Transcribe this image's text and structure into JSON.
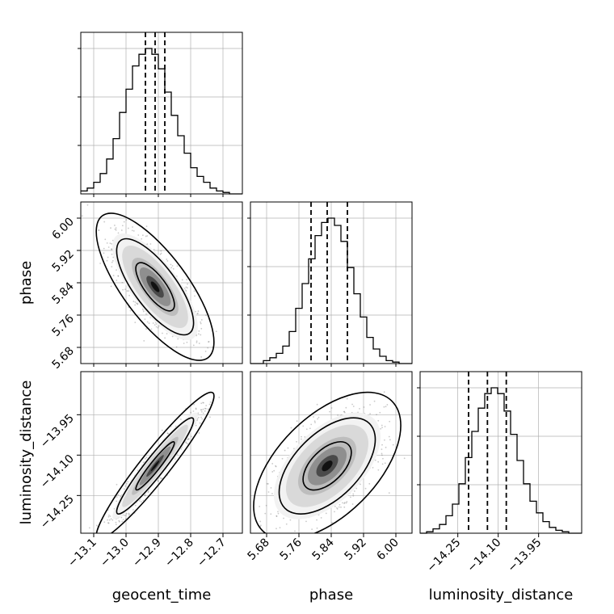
{
  "chart_data": {
    "type": "corner",
    "parameters": [
      "geocent_time",
      "phase",
      "luminosity_distance"
    ],
    "labels": {
      "geocent_time": "geocent_time",
      "phase": "phase",
      "luminosity_distance": "luminosity_distance"
    },
    "ranges": {
      "geocent_time": [
        -13.14,
        -12.64
      ],
      "phase": [
        5.64,
        6.04
      ],
      "luminosity_distance": [
        -14.39,
        -13.79
      ]
    },
    "ticks": {
      "geocent_time": {
        "values": [
          -13.1,
          -13.0,
          -12.9,
          -12.8,
          -12.7
        ],
        "labels": [
          "−13.1",
          "−13.0",
          "−12.9",
          "−12.8",
          "−12.7"
        ]
      },
      "phase": {
        "values": [
          5.68,
          5.76,
          5.84,
          5.92,
          6.0
        ],
        "labels": [
          "5.68",
          "5.76",
          "5.84",
          "5.92",
          "6.00"
        ]
      },
      "luminosity_distance": {
        "values": [
          -14.25,
          -14.1,
          -13.95
        ],
        "labels": [
          "−14.25",
          "−14.10",
          "−13.95"
        ]
      }
    },
    "quantiles": {
      "geocent_time": [
        -12.94,
        -12.91,
        -12.88
      ],
      "phase": [
        5.79,
        5.83,
        5.88
      ],
      "luminosity_distance": [
        -14.21,
        -14.14,
        -14.07
      ]
    },
    "histograms": {
      "geocent_time": {
        "bins": [
          -13.14,
          -13.12,
          -13.1,
          -13.08,
          -13.06,
          -13.04,
          -13.02,
          -13.0,
          -12.98,
          -12.96,
          -12.94,
          -12.92,
          -12.9,
          -12.88,
          -12.86,
          -12.84,
          -12.82,
          -12.8,
          -12.78,
          -12.76,
          -12.74,
          -12.72,
          -12.7,
          -12.68,
          -12.66,
          -12.64
        ],
        "counts": [
          2,
          4,
          8,
          14,
          24,
          38,
          56,
          72,
          88,
          96,
          100,
          96,
          86,
          70,
          54,
          40,
          28,
          18,
          12,
          8,
          4,
          2,
          1,
          0,
          0
        ]
      },
      "phase": {
        "bins": [
          5.64,
          5.656,
          5.672,
          5.688,
          5.704,
          5.72,
          5.736,
          5.752,
          5.768,
          5.784,
          5.8,
          5.816,
          5.832,
          5.848,
          5.864,
          5.88,
          5.896,
          5.912,
          5.928,
          5.944,
          5.96,
          5.976,
          5.992,
          6.008,
          6.024,
          6.04
        ],
        "counts": [
          0,
          0,
          2,
          4,
          7,
          12,
          22,
          38,
          55,
          72,
          88,
          97,
          100,
          95,
          84,
          66,
          48,
          32,
          18,
          10,
          5,
          2,
          1,
          0,
          0
        ]
      },
      "luminosity_distance": {
        "bins": [
          -14.39,
          -14.366,
          -14.342,
          -14.318,
          -14.294,
          -14.27,
          -14.246,
          -14.222,
          -14.198,
          -14.174,
          -14.15,
          -14.126,
          -14.102,
          -14.078,
          -14.054,
          -14.03,
          -14.006,
          -13.982,
          -13.958,
          -13.934,
          -13.91,
          -13.886,
          -13.862,
          -13.838,
          -13.814,
          -13.79
        ],
        "counts": [
          0,
          1,
          3,
          6,
          12,
          20,
          34,
          52,
          70,
          86,
          96,
          100,
          96,
          84,
          68,
          50,
          34,
          22,
          14,
          8,
          4,
          2,
          1,
          0,
          0
        ]
      }
    },
    "pairs": [
      {
        "x": "geocent_time",
        "y": "phase",
        "mean": [
          -12.91,
          5.83
        ],
        "std": [
          0.06,
          0.06
        ],
        "corr": -0.75
      },
      {
        "x": "geocent_time",
        "y": "luminosity_distance",
        "mean": [
          -12.91,
          -14.14
        ],
        "std": [
          0.06,
          0.09
        ],
        "corr": 0.95
      },
      {
        "x": "phase",
        "y": "luminosity_distance",
        "mean": [
          5.83,
          -14.14
        ],
        "std": [
          0.06,
          0.09
        ],
        "corr": 0.55
      }
    ],
    "contour_levels": [
      0.39,
      0.86,
      0.99
    ],
    "grid": true,
    "colors": {
      "line": "#000000",
      "grid": "#b0b0b0",
      "points": "#666666"
    }
  }
}
